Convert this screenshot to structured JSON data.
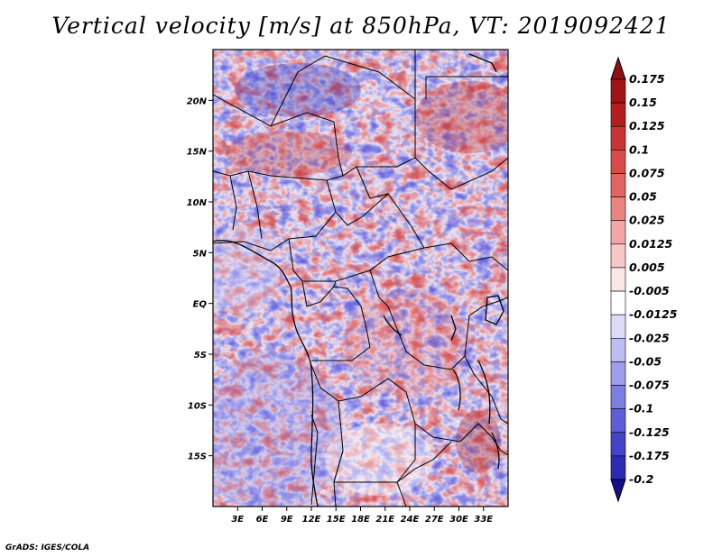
{
  "title": "Vertical velocity [m/s] at 850hPa, VT: 2019092421",
  "credit": "GrADS: IGES/COLA",
  "map": {
    "lon_range": [
      0,
      36
    ],
    "lat_range": [
      -20,
      25
    ],
    "lat_ticks": [
      {
        "value": 20,
        "label": "20N"
      },
      {
        "value": 15,
        "label": "15N"
      },
      {
        "value": 10,
        "label": "10N"
      },
      {
        "value": 5,
        "label": "5N"
      },
      {
        "value": 0,
        "label": "EQ"
      },
      {
        "value": -5,
        "label": "5S"
      },
      {
        "value": -10,
        "label": "10S"
      },
      {
        "value": -15,
        "label": "15S"
      }
    ],
    "lon_ticks": [
      {
        "value": 3,
        "label": "3E"
      },
      {
        "value": 6,
        "label": "6E"
      },
      {
        "value": 9,
        "label": "9E"
      },
      {
        "value": 12,
        "label": "12E"
      },
      {
        "value": 15,
        "label": "15E"
      },
      {
        "value": 18,
        "label": "18E"
      },
      {
        "value": 21,
        "label": "21E"
      },
      {
        "value": 24,
        "label": "24E"
      },
      {
        "value": 27,
        "label": "27E"
      },
      {
        "value": 30,
        "label": "30E"
      },
      {
        "value": 33,
        "label": "33E"
      }
    ],
    "field": "vertical velocity, shaded: red = positive, blue = negative"
  },
  "colorbar": {
    "levels": [
      {
        "label": "0.175",
        "color": "#a01418"
      },
      {
        "label": "0.15",
        "color": "#b71c1f"
      },
      {
        "label": "0.125",
        "color": "#c93434"
      },
      {
        "label": "0.1",
        "color": "#d94a4a"
      },
      {
        "label": "0.075",
        "color": "#e46464"
      },
      {
        "label": "0.05",
        "color": "#ec8484"
      },
      {
        "label": "0.025",
        "color": "#f3a6a6"
      },
      {
        "label": "0.0125",
        "color": "#f8c8c8"
      },
      {
        "label": "0.005",
        "color": "#fde6e6"
      },
      {
        "label": "-0.005",
        "color": "#ffffff"
      },
      {
        "label": "-0.0125",
        "color": "#dcdcfa"
      },
      {
        "label": "-0.025",
        "color": "#bdbdf3"
      },
      {
        "label": "-0.05",
        "color": "#9d9deb"
      },
      {
        "label": "-0.075",
        "color": "#7e7ee2"
      },
      {
        "label": "-0.1",
        "color": "#5e5ed6"
      },
      {
        "label": "-0.125",
        "color": "#4343c7"
      },
      {
        "label": "-0.175",
        "color": "#2b2bb5"
      },
      {
        "label": "-0.2",
        "color": "#1a1aa0"
      }
    ],
    "top_color": "#8c0f12",
    "bottom_color": "#150f8c"
  }
}
